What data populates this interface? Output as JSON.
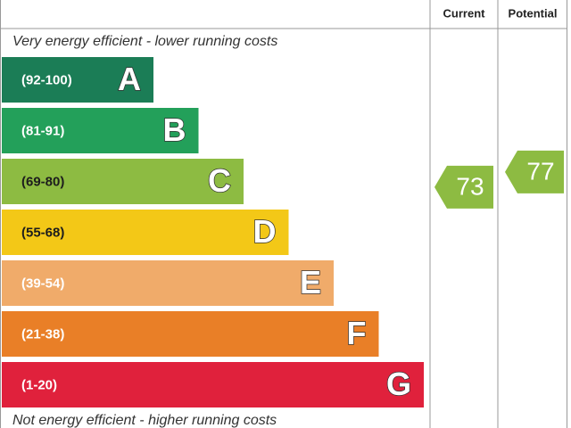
{
  "chart_data": {
    "type": "epc",
    "top_note": "Very energy efficient - lower running costs",
    "bottom_note": "Not energy efficient - higher running costs",
    "columns": [
      "Current",
      "Potential"
    ],
    "bands": [
      {
        "range": "(92-100)",
        "letter": "A",
        "color": "#1b7d56",
        "text_color": "#ffffff"
      },
      {
        "range": "(81-91)",
        "letter": "B",
        "color": "#23a05a",
        "text_color": "#ffffff"
      },
      {
        "range": "(69-80)",
        "letter": "C",
        "color": "#8dbb42",
        "text_color": "#1d1d1d"
      },
      {
        "range": "(55-68)",
        "letter": "D",
        "color": "#f3c817",
        "text_color": "#1d1d1d"
      },
      {
        "range": "(39-54)",
        "letter": "E",
        "color": "#f0ab6a",
        "text_color": "#ffffff"
      },
      {
        "range": "(21-38)",
        "letter": "F",
        "color": "#e97f27",
        "text_color": "#ffffff"
      },
      {
        "range": "(1-20)",
        "letter": "G",
        "color": "#e0213c",
        "text_color": "#ffffff"
      }
    ],
    "current": 73,
    "potential": 77
  }
}
